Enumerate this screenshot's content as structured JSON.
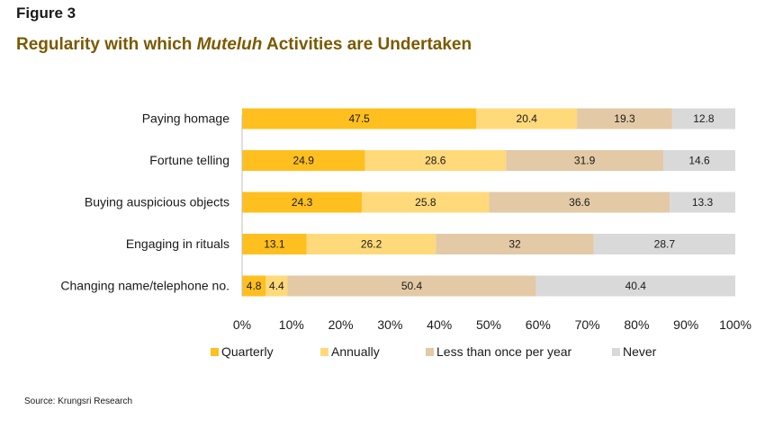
{
  "figure_label": "Figure 3",
  "title": {
    "prefix": "Regularity with which ",
    "emphasis": "Muteluh",
    "suffix": " Activities are Undertaken"
  },
  "source": "Source: Krungsri Research",
  "colors": {
    "quarterly": "#ffbf1f",
    "annually": "#ffd97a",
    "less_than_once": "#e3c9a5",
    "never": "#d9d9d9"
  },
  "chart_data": {
    "type": "bar",
    "orientation": "horizontal",
    "stacked": true,
    "categories": [
      "Paying homage",
      "Fortune telling",
      "Buying auspicious objects",
      "Engaging in rituals",
      "Changing name/telephone no."
    ],
    "series": [
      {
        "name": "Quarterly",
        "values": [
          47.5,
          24.9,
          24.3,
          13.1,
          4.8
        ],
        "labels": [
          "47.5",
          "24.9",
          "24.3",
          "13.1",
          "4.8"
        ]
      },
      {
        "name": "Annually",
        "values": [
          20.4,
          28.6,
          25.8,
          26.2,
          4.4
        ],
        "labels": [
          "20.4",
          "28.6",
          "25.8",
          "26.2",
          "4.4"
        ]
      },
      {
        "name": "Less than once per year",
        "values": [
          19.3,
          31.9,
          36.6,
          32,
          50.4
        ],
        "labels": [
          "19.3",
          "31.9",
          "36.6",
          "32",
          "50.4"
        ]
      },
      {
        "name": "Never",
        "values": [
          12.8,
          14.6,
          13.3,
          28.7,
          40.4
        ],
        "labels": [
          "12.8",
          "14.6",
          "13.3",
          "28.7",
          "40.4"
        ]
      }
    ],
    "xlim": [
      0,
      100
    ],
    "x_ticks": [
      "0%",
      "10%",
      "20%",
      "30%",
      "40%",
      "50%",
      "60%",
      "70%",
      "80%",
      "90%",
      "100%"
    ],
    "grid": false,
    "legend_position": "bottom"
  }
}
